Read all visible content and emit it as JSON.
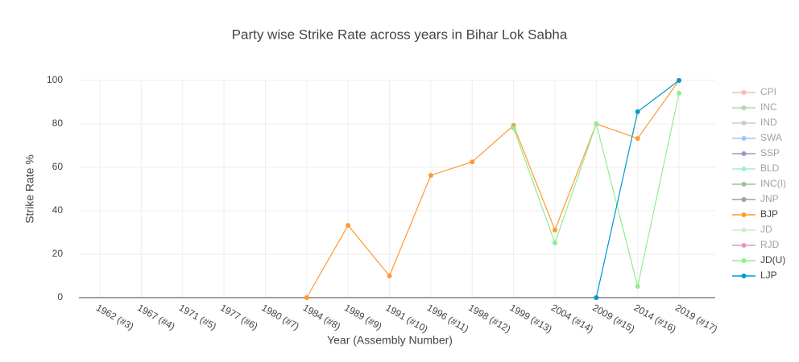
{
  "chart_data": {
    "type": "line",
    "title": "Party wise Strike Rate across years in Bihar Lok Sabha",
    "x_label": "Year (Assembly Number)",
    "y_label": "Strike Rate %",
    "categories": [
      "1962 (#3)",
      "1967 (#4)",
      "1971 (#5)",
      "1977 (#6)",
      "1980 (#7)",
      "1984 (#8)",
      "1989 (#9)",
      "1991 (#10)",
      "1996 (#11)",
      "1998 (#12)",
      "1999 (#13)",
      "2004 (#14)",
      "2009 (#15)",
      "2014 (#16)",
      "2019 (#17)"
    ],
    "ylim": [
      0,
      100
    ],
    "yticks": [
      0,
      20,
      40,
      60,
      80,
      100
    ],
    "grid": true,
    "series": [
      {
        "name": "CPI",
        "color": "#f8766d",
        "visible": false,
        "values": [
          null,
          null,
          null,
          null,
          null,
          null,
          null,
          null,
          null,
          null,
          null,
          null,
          null,
          null,
          null
        ]
      },
      {
        "name": "INC",
        "color": "#5cb85c",
        "visible": false,
        "values": [
          null,
          null,
          null,
          null,
          null,
          null,
          null,
          null,
          null,
          null,
          null,
          null,
          null,
          null,
          null
        ]
      },
      {
        "name": "IND",
        "color": "#999999",
        "visible": false,
        "values": [
          null,
          null,
          null,
          null,
          null,
          null,
          null,
          null,
          null,
          null,
          null,
          null,
          null,
          null,
          null
        ]
      },
      {
        "name": "SWA",
        "color": "#4a90d9",
        "visible": false,
        "values": [
          null,
          null,
          null,
          null,
          null,
          null,
          null,
          null,
          null,
          null,
          null,
          null,
          null,
          null,
          null
        ]
      },
      {
        "name": "SSP",
        "color": "#3b2f8f",
        "visible": false,
        "values": [
          null,
          null,
          null,
          null,
          null,
          null,
          null,
          null,
          null,
          null,
          null,
          null,
          null,
          null,
          null
        ]
      },
      {
        "name": "BLD",
        "color": "#40e0b0",
        "visible": false,
        "values": [
          null,
          null,
          null,
          null,
          null,
          null,
          null,
          null,
          null,
          null,
          null,
          null,
          null,
          null,
          null
        ]
      },
      {
        "name": "INC(I)",
        "color": "#2e8b2e",
        "visible": false,
        "values": [
          null,
          null,
          null,
          null,
          null,
          null,
          null,
          null,
          null,
          null,
          null,
          null,
          null,
          null,
          null
        ]
      },
      {
        "name": "JNP",
        "color": "#5a3a3a",
        "visible": false,
        "values": [
          null,
          null,
          null,
          null,
          null,
          null,
          null,
          null,
          null,
          null,
          null,
          null,
          null,
          null,
          null
        ]
      },
      {
        "name": "BJP",
        "color": "#ff9933",
        "visible": true,
        "values": [
          null,
          null,
          null,
          null,
          null,
          0,
          33.3,
          10,
          56.3,
          62.5,
          79.3,
          31.1,
          80,
          73.3,
          100
        ]
      },
      {
        "name": "JD",
        "color": "#9be09b",
        "visible": false,
        "values": [
          null,
          null,
          null,
          null,
          null,
          null,
          null,
          null,
          null,
          null,
          null,
          null,
          null,
          null,
          null
        ]
      },
      {
        "name": "RJD",
        "color": "#d0308a",
        "visible": false,
        "values": [
          null,
          null,
          null,
          null,
          null,
          null,
          null,
          null,
          null,
          null,
          null,
          null,
          null,
          null,
          null
        ]
      },
      {
        "name": "JD(U)",
        "color": "#90ee90",
        "visible": true,
        "values": [
          null,
          null,
          null,
          null,
          null,
          null,
          null,
          null,
          null,
          null,
          78.1,
          25.2,
          80,
          5.2,
          94.1
        ]
      },
      {
        "name": "LJP",
        "color": "#0099cc",
        "visible": true,
        "values": [
          null,
          null,
          null,
          null,
          null,
          null,
          null,
          null,
          null,
          null,
          null,
          null,
          0,
          85.6,
          100
        ]
      }
    ]
  }
}
